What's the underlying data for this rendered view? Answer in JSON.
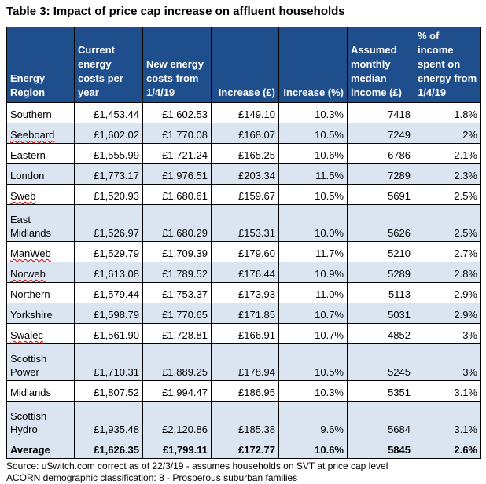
{
  "title": "Table 3: Impact of price cap increase on affluent households",
  "headers": {
    "region": "Energy Region",
    "current": "Current energy costs per year",
    "new": "New energy costs from 1/4/19",
    "increase_gbp": "Increase (£)",
    "increase_pct": "Increase (%)",
    "income": "Assumed monthly median income (£)",
    "pct_income": "% of income spent on energy from 1/4/19"
  },
  "rows": [
    {
      "region": "Southern",
      "current": "£1,453.44",
      "new": "£1,602.53",
      "increase_gbp": "£149.10",
      "increase_pct": "10.3%",
      "income": "7418",
      "pct_income": "1.8%"
    },
    {
      "region": "Seeboard",
      "current": "£1,602.02",
      "new": "£1,770.08",
      "increase_gbp": "£168.07",
      "increase_pct": "10.5%",
      "income": "7249",
      "pct_income": "2%"
    },
    {
      "region": "Eastern",
      "current": "£1,555.99",
      "new": "£1,721.24",
      "increase_gbp": "£165.25",
      "increase_pct": "10.6%",
      "income": "6786",
      "pct_income": "2.1%"
    },
    {
      "region": "London",
      "current": "£1,773.17",
      "new": "£1,976.51",
      "increase_gbp": "£203.34",
      "increase_pct": "11.5%",
      "income": "7289",
      "pct_income": "2.3%"
    },
    {
      "region": "Sweb",
      "current": "£1,520.93",
      "new": "£1,680.61",
      "increase_gbp": "£159.67",
      "increase_pct": "10.5%",
      "income": "5691",
      "pct_income": "2.5%"
    },
    {
      "region": "East Midlands",
      "current": "£1,526.97",
      "new": "£1,680.29",
      "increase_gbp": "£153.31",
      "increase_pct": "10.0%",
      "income": "5626",
      "pct_income": "2.5%"
    },
    {
      "region": "ManWeb",
      "current": "£1,529.79",
      "new": "£1,709.39",
      "increase_gbp": "£179.60",
      "increase_pct": "11.7%",
      "income": "5210",
      "pct_income": "2.7%"
    },
    {
      "region": "Norweb",
      "current": "£1,613.08",
      "new": "£1,789.52",
      "increase_gbp": "£176.44",
      "increase_pct": "10.9%",
      "income": "5289",
      "pct_income": "2.8%"
    },
    {
      "region": "Northern",
      "current": "£1,579.44",
      "new": "£1,753.37",
      "increase_gbp": "£173.93",
      "increase_pct": "11.0%",
      "income": "5113",
      "pct_income": "2.9%"
    },
    {
      "region": "Yorkshire",
      "current": "£1,598.79",
      "new": "£1,770.65",
      "increase_gbp": "£171.85",
      "increase_pct": "10.7%",
      "income": "5031",
      "pct_income": "2.9%"
    },
    {
      "region": "Swalec",
      "current": "£1,561.90",
      "new": "£1,728.81",
      "increase_gbp": "£166.91",
      "increase_pct": "10.7%",
      "income": "4852",
      "pct_income": "3%"
    },
    {
      "region": "Scottish Power",
      "current": "£1,710.31",
      "new": "£1,889.25",
      "increase_gbp": "£178.94",
      "increase_pct": "10.5%",
      "income": "5245",
      "pct_income": "3%"
    },
    {
      "region": "Midlands",
      "current": "£1,807.52",
      "new": "£1,994.47",
      "increase_gbp": "£186.95",
      "increase_pct": "10.3%",
      "income": "5351",
      "pct_income": "3.1%"
    },
    {
      "region": "Scottish Hydro",
      "current": "£1,935.48",
      "new": "£2,120.86",
      "increase_gbp": "£185.38",
      "increase_pct": "9.6%",
      "income": "5684",
      "pct_income": "3.1%"
    }
  ],
  "average": {
    "region": "Average",
    "current": "£1,626.35",
    "new": "£1,799.11",
    "increase_gbp": "£172.77",
    "increase_pct": "10.6%",
    "income": "5845",
    "pct_income": "2.6%"
  },
  "source_line1": "Source: uSwitch.com correct as of 22/3/19 - assumes households on SVT at price cap level",
  "source_line2": "ACORN demographic classification: 8 - Prosperous suburban families"
}
